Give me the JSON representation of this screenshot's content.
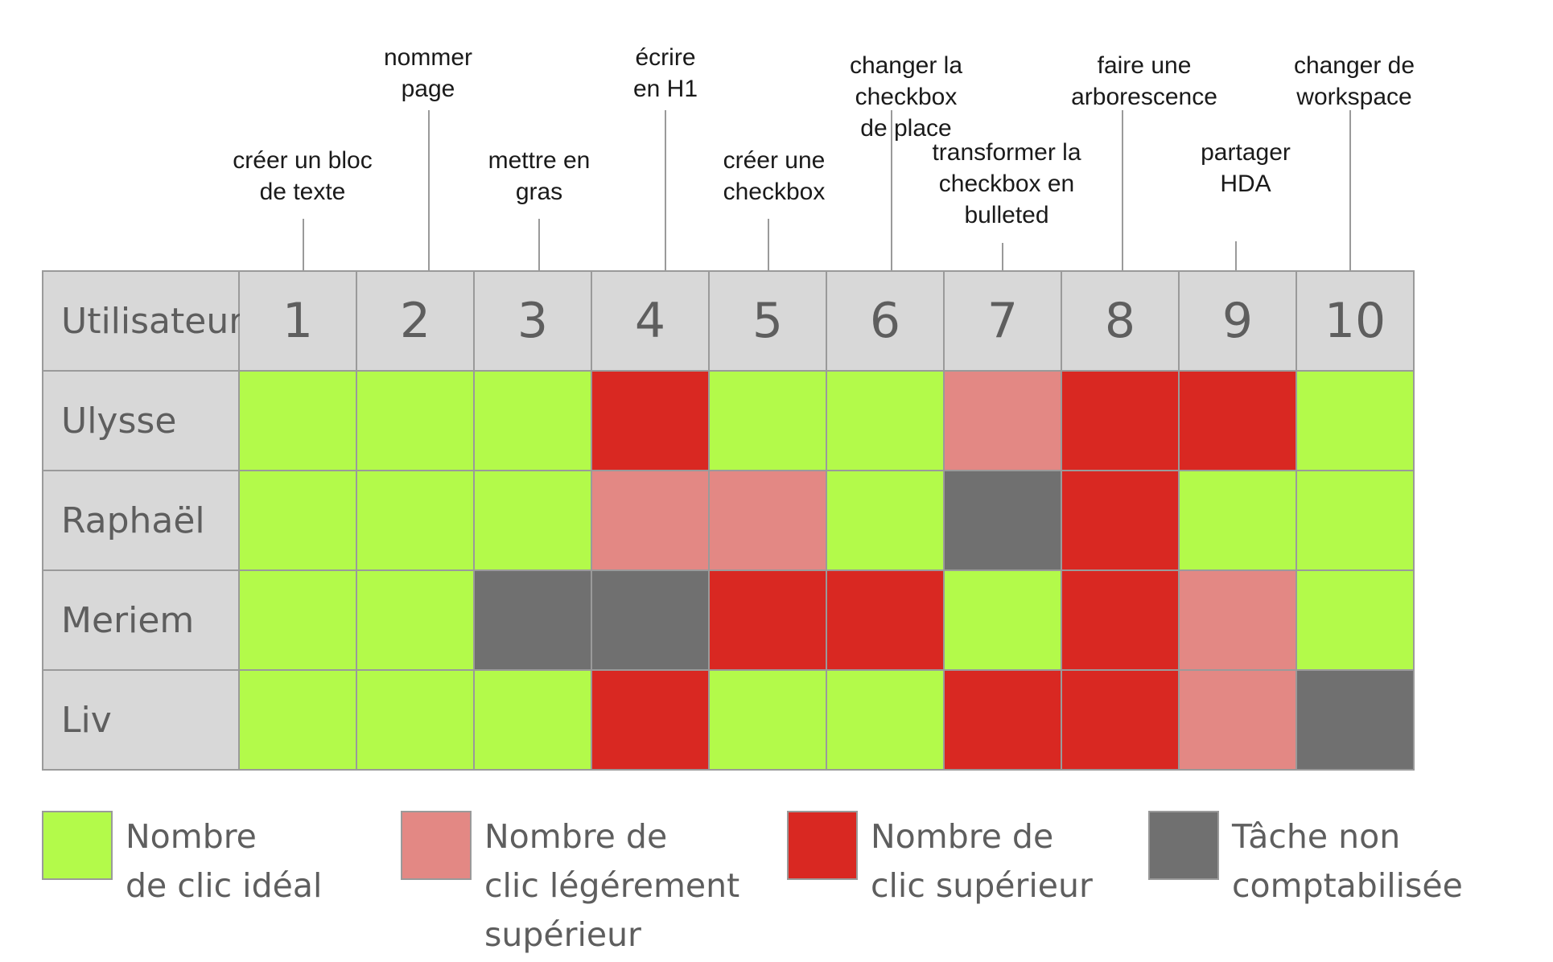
{
  "chart_data": {
    "type": "table",
    "header_label": "Utilisateur",
    "columns": [
      "1",
      "2",
      "3",
      "4",
      "5",
      "6",
      "7",
      "8",
      "9",
      "10"
    ],
    "tasks": [
      "créer un bloc\nde texte",
      "nommer\npage",
      "mettre en\ngras",
      "écrire\nen H1",
      "créer une\ncheckbox",
      "changer la checkbox\nde place",
      "transformer la\ncheckbox en\nbulleted",
      "faire une\narborescence",
      "partager\nHDA",
      "changer de\nworkspace"
    ],
    "rows": [
      {
        "user": "Ulysse",
        "statuses": [
          "ideal",
          "ideal",
          "ideal",
          "superieur",
          "ideal",
          "ideal",
          "leger",
          "superieur",
          "superieur",
          "ideal"
        ]
      },
      {
        "user": "Raphaël",
        "statuses": [
          "ideal",
          "ideal",
          "ideal",
          "leger",
          "leger",
          "ideal",
          "non",
          "superieur",
          "ideal",
          "ideal"
        ]
      },
      {
        "user": "Meriem",
        "statuses": [
          "ideal",
          "ideal",
          "non",
          "non",
          "superieur",
          "superieur",
          "ideal",
          "superieur",
          "leger",
          "ideal"
        ]
      },
      {
        "user": "Liv",
        "statuses": [
          "ideal",
          "ideal",
          "ideal",
          "superieur",
          "ideal",
          "ideal",
          "superieur",
          "superieur",
          "leger",
          "non"
        ]
      }
    ],
    "legend": [
      {
        "key": "ideal",
        "label": "Nombre\nde clic idéal",
        "color": "#b3fa4a"
      },
      {
        "key": "leger",
        "label": "Nombre de\nclic légérement\nsupérieur",
        "color": "#e38884"
      },
      {
        "key": "superieur",
        "label": "Nombre de\nclic supérieur",
        "color": "#d92822"
      },
      {
        "key": "non",
        "label": "Tâche non\ncomptabilisée",
        "color": "#707070"
      }
    ]
  }
}
